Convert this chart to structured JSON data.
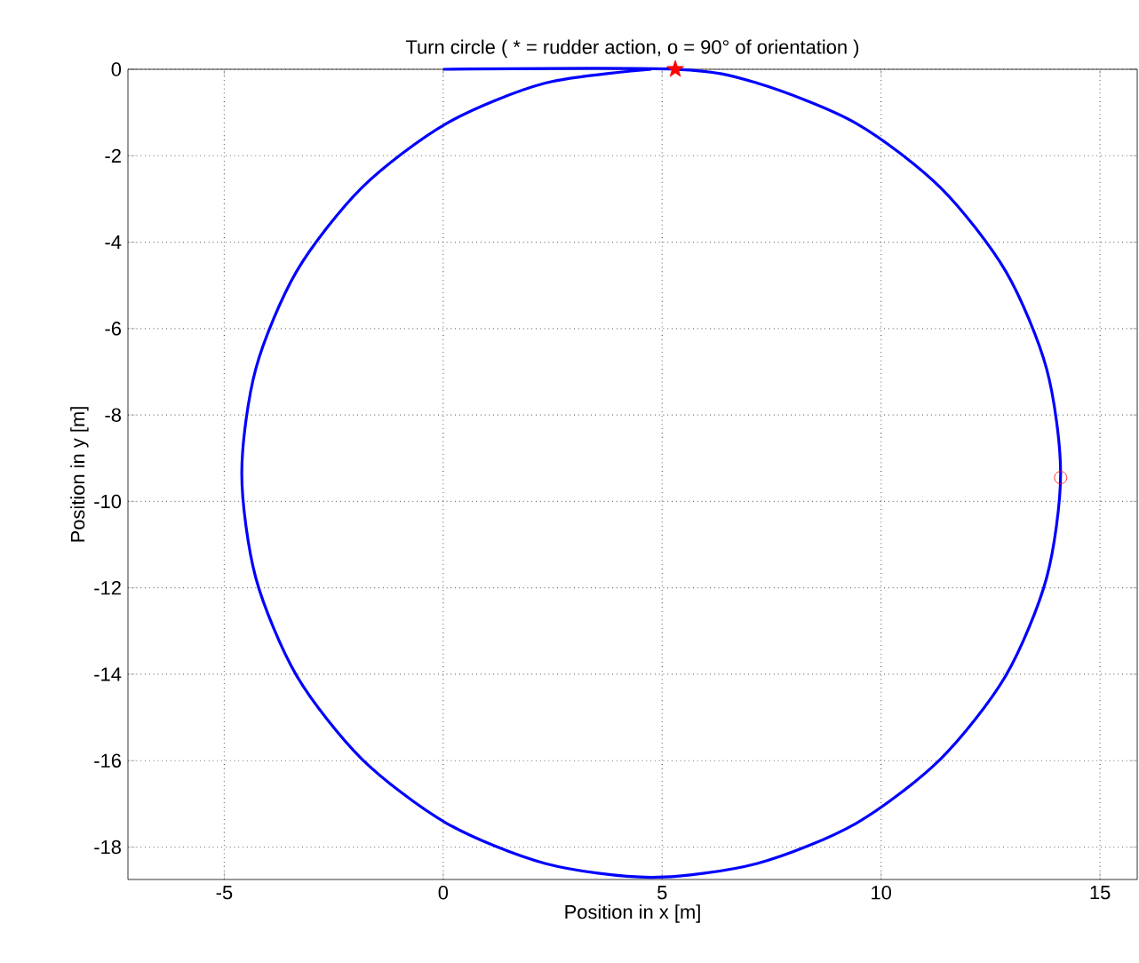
{
  "chart_data": {
    "type": "line",
    "title": "Turn circle ( * = rudder action, o = 90° of orientation )",
    "xlabel": "Position in x [m]",
    "ylabel": "Position in y [m]",
    "xlim": [
      -7.2,
      15.85
    ],
    "ylim": [
      -18.75,
      0
    ],
    "xticks": [
      -5,
      0,
      5,
      10,
      15
    ],
    "yticks": [
      0,
      -2,
      -4,
      -6,
      -8,
      -10,
      -12,
      -14,
      -16,
      -18
    ],
    "grid": true,
    "series": [
      {
        "color": "#0000ff",
        "marker": "none",
        "x": [
          0,
          5.3,
          7.17,
          9.43,
          11.36,
          12.85,
          13.78,
          14.1,
          13.78,
          12.85,
          11.36,
          9.43,
          7.17,
          4.75,
          2.33,
          0.08,
          -1.86,
          -3.35,
          -4.28,
          -4.6,
          -4.28,
          -3.35,
          -1.86,
          0.08,
          2.33,
          4.75
        ],
        "values": [
          0,
          0,
          -0.32,
          -1.25,
          -2.74,
          -4.68,
          -6.93,
          -9.35,
          -11.77,
          -14.03,
          -15.96,
          -17.45,
          -18.38,
          -18.7,
          -18.38,
          -17.45,
          -15.96,
          -14.03,
          -11.77,
          -9.35,
          -6.93,
          -4.68,
          -2.74,
          -1.25,
          -0.32,
          0
        ]
      },
      {
        "type": "scatter",
        "color": "#ff0000",
        "marker": "star",
        "x": [
          5.3
        ],
        "values": [
          0
        ]
      },
      {
        "type": "scatter",
        "color": "#ff0000",
        "marker": "circle",
        "x": [
          14.1
        ],
        "values": [
          -9.45
        ]
      }
    ]
  }
}
